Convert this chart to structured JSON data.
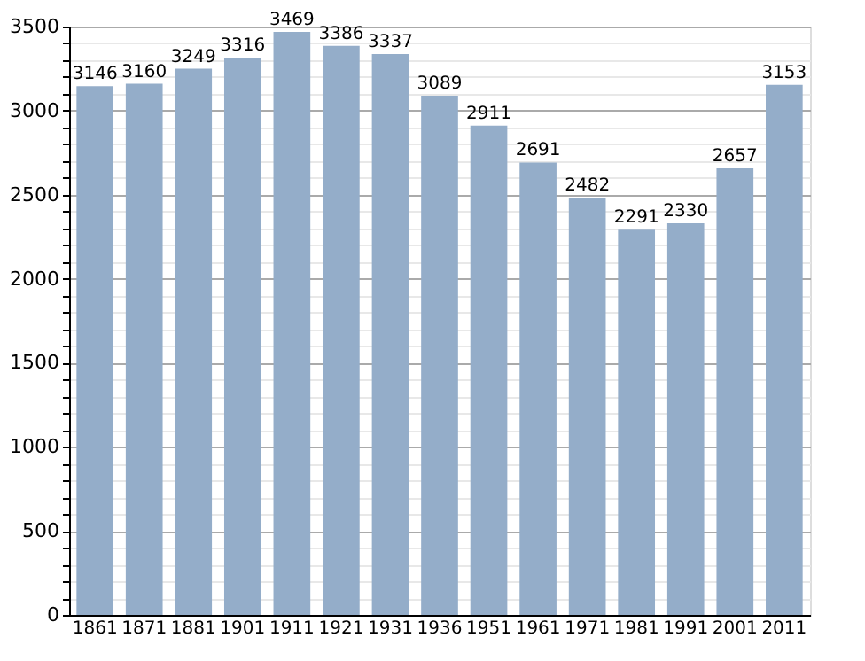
{
  "chart_data": {
    "type": "bar",
    "categories": [
      "1861",
      "1871",
      "1881",
      "1901",
      "1911",
      "1921",
      "1931",
      "1936",
      "1951",
      "1961",
      "1971",
      "1981",
      "1991",
      "2001",
      "2011"
    ],
    "values": [
      3146,
      3160,
      3249,
      3316,
      3469,
      3386,
      3337,
      3089,
      2911,
      2691,
      2482,
      2291,
      2330,
      2657,
      3153
    ],
    "color": "#94adc9",
    "data_labels": true,
    "grid": "y",
    "ylim": [
      0,
      3500
    ],
    "yticks": [
      0,
      {
        "value": 100,
        "label": null
      },
      {
        "value": 200,
        "label": null
      },
      {
        "value": 300,
        "label": null
      },
      {
        "value": 400,
        "label": null
      },
      500,
      {
        "value": 600,
        "label": null
      },
      {
        "value": 700,
        "label": null
      },
      {
        "value": 800,
        "label": null
      },
      {
        "value": 900,
        "label": null
      },
      1000,
      {
        "value": 1100,
        "label": null
      },
      {
        "value": 1200,
        "label": null
      },
      {
        "value": 1300,
        "label": null
      },
      {
        "value": 1400,
        "label": null
      },
      1500,
      {
        "value": 1600,
        "label": null
      },
      {
        "value": 1700,
        "label": null
      },
      {
        "value": 1800,
        "label": null
      },
      {
        "value": 1900,
        "label": null
      },
      2000,
      {
        "value": 2100,
        "label": null
      },
      {
        "value": 2200,
        "label": null
      },
      {
        "value": 2300,
        "label": null
      },
      {
        "value": 2400,
        "label": null
      },
      2500,
      {
        "value": 2600,
        "label": null
      },
      {
        "value": 2700,
        "label": null
      },
      {
        "value": 2800,
        "label": null
      },
      {
        "value": 2900,
        "label": null
      },
      3000,
      {
        "value": 3100,
        "label": null
      },
      {
        "value": 3200,
        "label": null
      },
      {
        "value": 3300,
        "label": null
      },
      {
        "value": 3400,
        "label": null
      },
      3500
    ]
  }
}
